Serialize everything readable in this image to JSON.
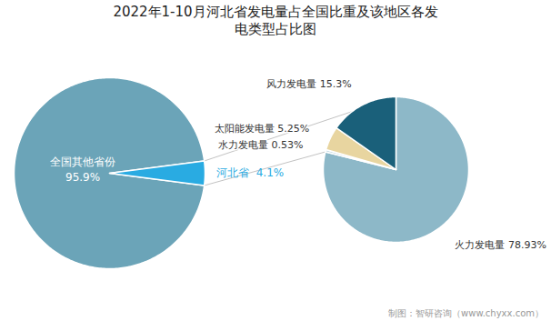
{
  "chart_data": [
    {
      "type": "pie",
      "title": "2022年1-10月河北省发电量占全国比重及该地区各发\n电类型占比图",
      "values": [
        95.9,
        4.1
      ],
      "value_labels": [
        "全国其他省份\n95.9%",
        "河北省  4.1%"
      ],
      "colors": [
        "#6ba4b8",
        "#29abe2"
      ],
      "data_labels": true
    },
    {
      "type": "pie",
      "values": [
        78.93,
        0.53,
        5.25,
        15.3
      ],
      "value_labels": [
        "火力发电量 78.93%",
        "水力发电量 0.53%",
        "太阳能发电量 5.25%",
        "风力发电量 15.3%"
      ],
      "colors": [
        "#8db8c8",
        "#c4d9e3",
        "#e8d5a0",
        "#1a607a"
      ],
      "data_labels": true,
      "caption": "制图：智研咨询（www.chyxx.com）"
    }
  ]
}
